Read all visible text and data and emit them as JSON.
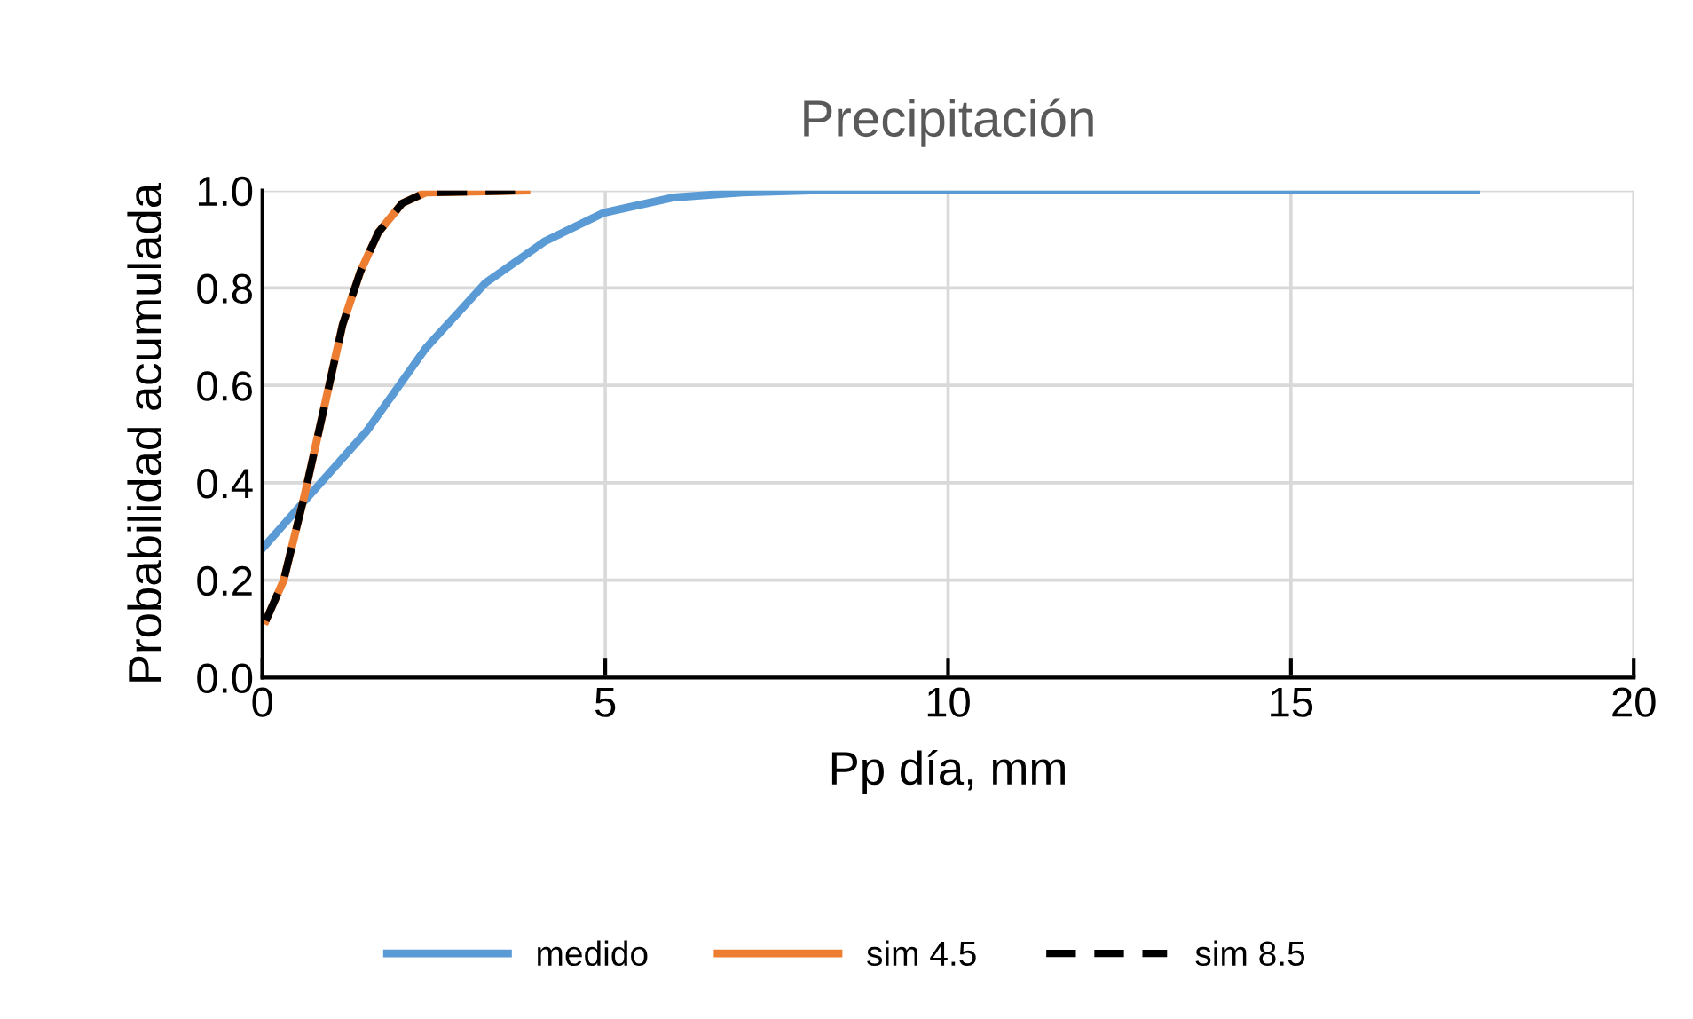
{
  "chart_data": {
    "type": "line",
    "title": "Precipitación",
    "xlabel": "Pp día, mm",
    "ylabel": "Probabilidad acumulada",
    "xlim": [
      0,
      20
    ],
    "ylim": [
      0,
      1.0
    ],
    "xticks": [
      0,
      5,
      10,
      15,
      20
    ],
    "yticks": [
      {
        "value": 0,
        "label": "0.0"
      },
      {
        "value": 0.2,
        "label": "0.2"
      },
      {
        "value": 0.4,
        "label": "0.4"
      },
      {
        "value": 0.6,
        "label": "0.6"
      },
      {
        "value": 0.8,
        "label": "0.8"
      },
      {
        "value": 1.0,
        "label": "1.0"
      }
    ],
    "grid": true,
    "legend": "bottom",
    "marker": "none",
    "series": [
      {
        "name": "medido",
        "color": "#5b9bd5",
        "line_style": "solid",
        "x": [
          0,
          0.66,
          1.52,
          2.38,
          3.25,
          4.11,
          4.97,
          6.0,
          7.0,
          8.0,
          17.7
        ],
        "values": [
          0.265,
          0.37,
          0.506,
          0.676,
          0.81,
          0.895,
          0.954,
          0.986,
          0.996,
          1.0,
          1.0
        ]
      },
      {
        "name": "sim 4.5",
        "color": "#ed7d31",
        "line_style": "solid",
        "x": [
          0.05,
          0.31,
          0.61,
          0.92,
          1.17,
          1.43,
          1.69,
          2.04,
          2.38,
          3.85
        ],
        "values": [
          0.117,
          0.2,
          0.372,
          0.567,
          0.725,
          0.834,
          0.914,
          0.974,
          0.996,
          1.0
        ]
      },
      {
        "name": "sim 8.5",
        "color": "#000000",
        "line_style": "dashed",
        "x": [
          0.05,
          0.31,
          0.61,
          0.92,
          1.17,
          1.43,
          1.69,
          2.04,
          2.38,
          3.85
        ],
        "values": [
          0.117,
          0.2,
          0.372,
          0.567,
          0.725,
          0.834,
          0.914,
          0.974,
          0.996,
          1.0
        ]
      }
    ]
  }
}
